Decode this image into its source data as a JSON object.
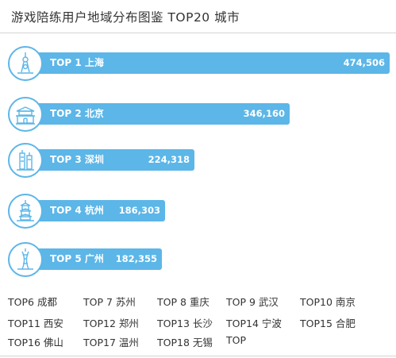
{
  "chart_data": {
    "type": "bar",
    "title": "游戏陪练用户地域分布图鉴 TOP20 城市",
    "orientation": "horizontal",
    "categories": [
      "TOP 1  上海",
      "TOP 2  北京",
      "TOP 3  深圳",
      "TOP 4  杭州",
      "TOP 5  广州"
    ],
    "values": [
      474506,
      346160,
      224318,
      186303,
      182355
    ],
    "value_labels": [
      "474,506",
      "346,160",
      "224,318",
      "186,303",
      "182,355"
    ],
    "icons": [
      "shanghai-tower-icon",
      "tiananmen-icon",
      "shenzhen-tower-icon",
      "hangzhou-pagoda-icon",
      "canton-tower-icon"
    ],
    "bar_color": "#5cb6e8",
    "grid": false,
    "legend": "none",
    "others": [
      "TOP6  成都",
      "TOP 7  苏州",
      "TOP 8  重庆",
      "TOP 9  武汉",
      "TOP10 南京",
      "TOP11 西安",
      "TOP12 郑州",
      "TOP13 长沙",
      "TOP14 宁波",
      "TOP15 合肥",
      "TOP16 佛山",
      "TOP17 温州",
      "TOP18 无锡",
      "TOP"
    ]
  }
}
